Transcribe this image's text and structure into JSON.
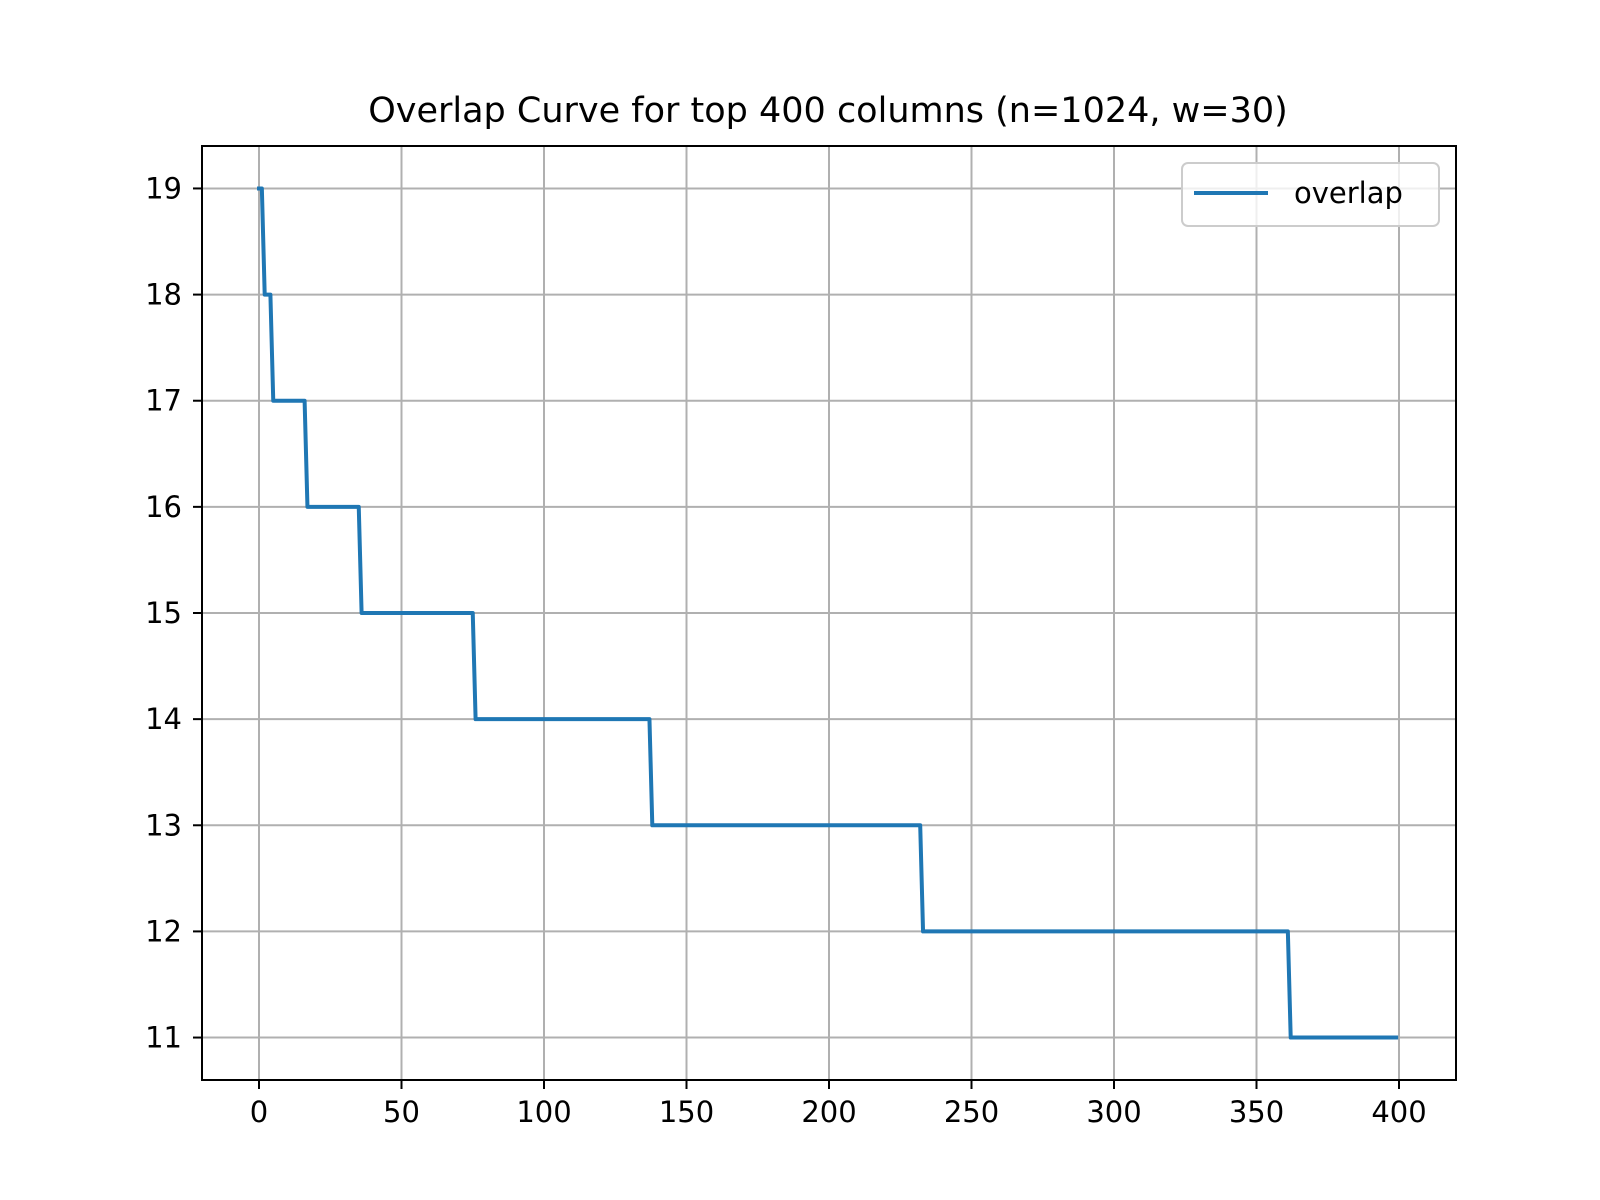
{
  "chart_data": {
    "type": "line",
    "title": "Overlap Curve for top 400 columns (n=1024, w=30)",
    "xlabel": "",
    "ylabel": "",
    "xlim": [
      -20,
      420
    ],
    "ylim": [
      10.6,
      19.4
    ],
    "xticks": [
      0,
      50,
      100,
      150,
      200,
      250,
      300,
      350,
      400
    ],
    "yticks": [
      11,
      12,
      13,
      14,
      15,
      16,
      17,
      18,
      19
    ],
    "grid": true,
    "legend": {
      "position": "top-right",
      "entries": [
        "overlap"
      ]
    },
    "series": [
      {
        "name": "overlap",
        "color": "#1f77b4",
        "x": [
          0,
          1,
          2,
          3,
          4,
          5,
          15,
          16,
          17,
          34,
          35,
          36,
          74,
          75,
          76,
          136,
          137,
          138,
          231,
          232,
          233,
          360,
          361,
          362,
          399
        ],
        "y": [
          19,
          19,
          18,
          18,
          18,
          17,
          17,
          17,
          16,
          16,
          16,
          15,
          15,
          15,
          14,
          14,
          14,
          13,
          13,
          13,
          12,
          12,
          12,
          11,
          11
        ]
      }
    ]
  }
}
